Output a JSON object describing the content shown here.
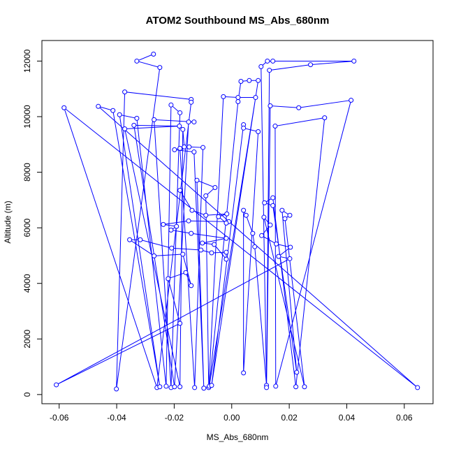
{
  "chart_data": {
    "type": "line",
    "title": "ATOM2 Southbound MS_Abs_680nm",
    "x_label": "MS_Abs_680nm",
    "y_label": "Altitude (m)",
    "marker": "circle",
    "color": "#0000ff",
    "xlim": [
      -0.066,
      0.07
    ],
    "ylim": [
      -330,
      12740
    ],
    "xticks": [
      -0.06,
      -0.04,
      -0.02,
      {
        "value": 0,
        "label": "0.00"
      },
      0.02,
      0.04,
      0.06
    ],
    "yticks": [
      0,
      2000,
      4000,
      6000,
      8000,
      10000,
      12000
    ],
    "x": [
      -0.0272,
      -0.033,
      -0.025,
      -0.0401,
      -0.0372,
      -0.0141,
      -0.0141,
      -0.026,
      -0.0583,
      0.0646,
      -0.0464,
      -0.0413,
      -0.025,
      -0.039,
      -0.033,
      -0.0228,
      -0.0211,
      -0.018,
      -0.0211,
      -0.027,
      -0.0131,
      -0.015,
      -0.0199,
      -0.034,
      -0.0182,
      -0.0372,
      -0.018,
      -0.017,
      -0.0165,
      -0.0148,
      -0.01,
      -0.0129,
      -0.018,
      -0.0199,
      -0.0131,
      -0.0097,
      -0.0121,
      -0.0058,
      -0.009,
      -0.008,
      -0.0029,
      0.0022,
      0.0083,
      -0.0078,
      0.0022,
      0.0032,
      0.0061,
      0.0092,
      -0.007,
      0.0041,
      0.0041,
      0.0092,
      0.0041,
      0.0041,
      0.005,
      0.0073,
      0.008,
      0.0121,
      0.0102,
      0.0124,
      0.0143,
      0.0425,
      0.0274,
      0.0131,
      0.0121,
      0.0134,
      0.0233,
      0.0415,
      0.0153,
      0.0151,
      0.0323,
      0.0223,
      0.0143,
      0.0114,
      0.0143,
      0.0226,
      0.0175,
      0.0202,
      0.0185,
      0.0253,
      0.0112,
      0.0134,
      0.0104,
      0.0155,
      0.0204,
      0.0163,
      0.0202,
      -0.061,
      -0.018,
      -0.0221,
      -0.016,
      -0.0141,
      -0.017,
      -0.027,
      -0.0355,
      -0.0318,
      -0.0209,
      -0.0107,
      -0.007,
      -0.0019,
      -0.0019,
      -0.0061,
      -0.0102,
      -0.0019,
      -0.0141,
      -0.0211,
      -0.0192,
      -0.0238,
      -0.015,
      -0.001,
      -0.0019,
      -0.0046,
      -0.0017,
      -0.009,
      -0.0138,
      -0.018
    ],
    "y": [
      12250,
      12000,
      11770,
      200,
      10890,
      10620,
      10520,
      250,
      10320,
      250,
      10370,
      10220,
      280,
      10070,
      9940,
      300,
      10420,
      10140,
      250,
      9890,
      9810,
      9810,
      280,
      9690,
      9660,
      9560,
      280,
      9540,
      8910,
      8910,
      8890,
      250,
      8860,
      8810,
      8730,
      230,
      7710,
      7450,
      7150,
      250,
      10720,
      10690,
      10690,
      300,
      10540,
      11270,
      11300,
      11300,
      330,
      9710,
      9590,
      9460,
      780,
      6630,
      6450,
      5800,
      5320,
      330,
      11800,
      12000,
      12000,
      12000,
      11870,
      11670,
      250,
      10390,
      10320,
      10590,
      300,
      9660,
      9960,
      280,
      7080,
      6900,
      6800,
      800,
      6630,
      6450,
      6330,
      280,
      6380,
      6100,
      5720,
      5420,
      5300,
      4970,
      4890,
      350,
      2560,
      4170,
      4390,
      3920,
      5050,
      4990,
      5570,
      5570,
      5270,
      5200,
      5100,
      5120,
      4870,
      5400,
      5450,
      5620,
      5800,
      5920,
      6050,
      6120,
      6250,
      6220,
      6170,
      6400,
      6500,
      6450,
      6630,
      7350
    ]
  }
}
